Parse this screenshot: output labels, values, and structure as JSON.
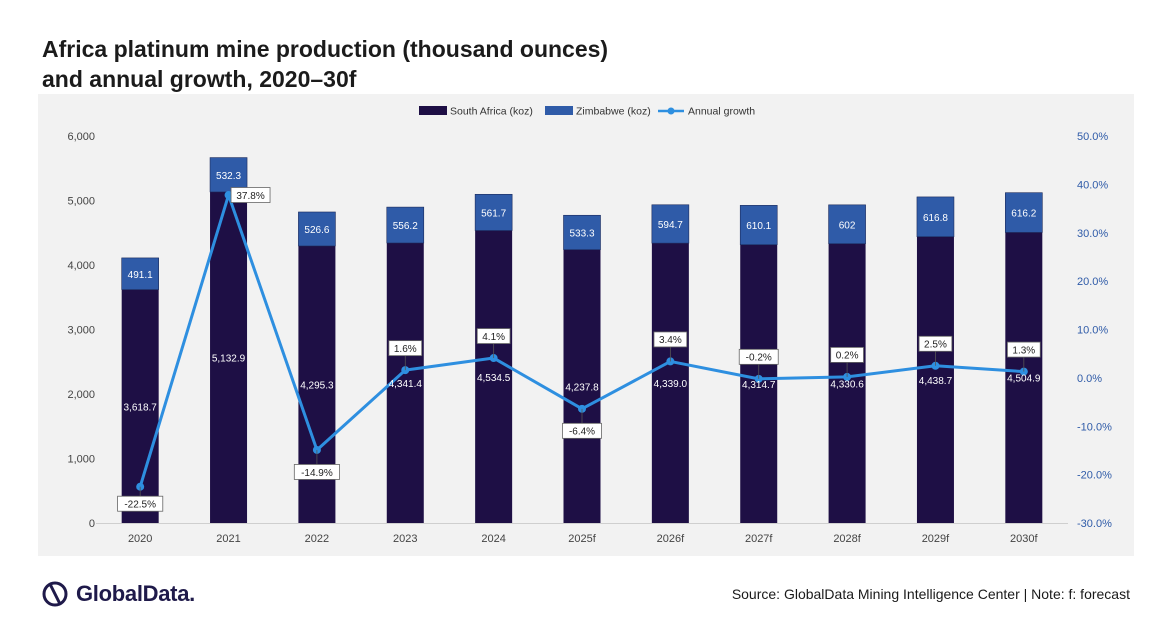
{
  "title_line1": "Africa platinum mine production (thousand ounces)",
  "title_line2": "and annual growth, 2020–30f",
  "source_text": "Source: GlobalData Mining Intelligence Center | Note: f: forecast",
  "logo_text": "GlobalData.",
  "colors": {
    "south_africa": "#1e0f45",
    "zimbabwe": "#2f5ba8",
    "growth": "#2e8fe0",
    "axis_right_text": "#2f5ba8",
    "background": "#f2f2f2"
  },
  "chart_data": {
    "type": "bar",
    "stacked": true,
    "categories": [
      "2020",
      "2021",
      "2022",
      "2023",
      "2024",
      "2025f",
      "2026f",
      "2027f",
      "2028f",
      "2029f",
      "2030f"
    ],
    "series": [
      {
        "name": "South Africa (koz)",
        "type": "bar",
        "axis": "left",
        "values": [
          3618.7,
          5132.9,
          4295.3,
          4341.4,
          4534.5,
          4237.8,
          4339.0,
          4314.7,
          4330.6,
          4438.7,
          4504.9
        ],
        "labels": [
          "3,618.7",
          "5,132.9",
          "4,295.3",
          "4,341.4",
          "4,534.5",
          "4,237.8",
          "4,339.0",
          "4,314.7",
          "4,330.6",
          "4,438.7",
          "4,504.9"
        ]
      },
      {
        "name": "Zimbabwe (koz)",
        "type": "bar",
        "axis": "left",
        "values": [
          491.1,
          532.3,
          526.6,
          556.2,
          561.7,
          533.3,
          594.7,
          610.1,
          602,
          616.8,
          616.2
        ],
        "labels": [
          "491.1",
          "532.3",
          "526.6",
          "556.2",
          "561.7",
          "533.3",
          "594.7",
          "610.1",
          "602",
          "616.8",
          "616.2"
        ]
      },
      {
        "name": "Annual growth",
        "type": "line",
        "axis": "right",
        "values": [
          -22.5,
          37.8,
          -14.9,
          1.6,
          4.1,
          -6.4,
          3.4,
          -0.2,
          0.2,
          2.5,
          1.3
        ],
        "labels": [
          "-22.5%",
          "37.8%",
          "-14.9%",
          "1.6%",
          "4.1%",
          "-6.4%",
          "3.4%",
          "-0.2%",
          "0.2%",
          "2.5%",
          "1.3%"
        ]
      }
    ],
    "y_left": {
      "min": 0,
      "max": 6000,
      "ticks": [
        0,
        1000,
        2000,
        3000,
        4000,
        5000,
        6000
      ],
      "tick_labels": [
        "0",
        "1,000",
        "2,000",
        "3,000",
        "4,000",
        "5,000",
        "6,000"
      ]
    },
    "y_right": {
      "min": -30,
      "max": 50,
      "ticks": [
        -30,
        -20,
        -10,
        0,
        10,
        20,
        30,
        40,
        50
      ],
      "tick_labels": [
        "-30.0%",
        "-20.0%",
        "-10.0%",
        "0.0%",
        "10.0%",
        "20.0%",
        "30.0%",
        "40.0%",
        "50.0%"
      ]
    },
    "legend_position": "top-center",
    "grid": false
  }
}
